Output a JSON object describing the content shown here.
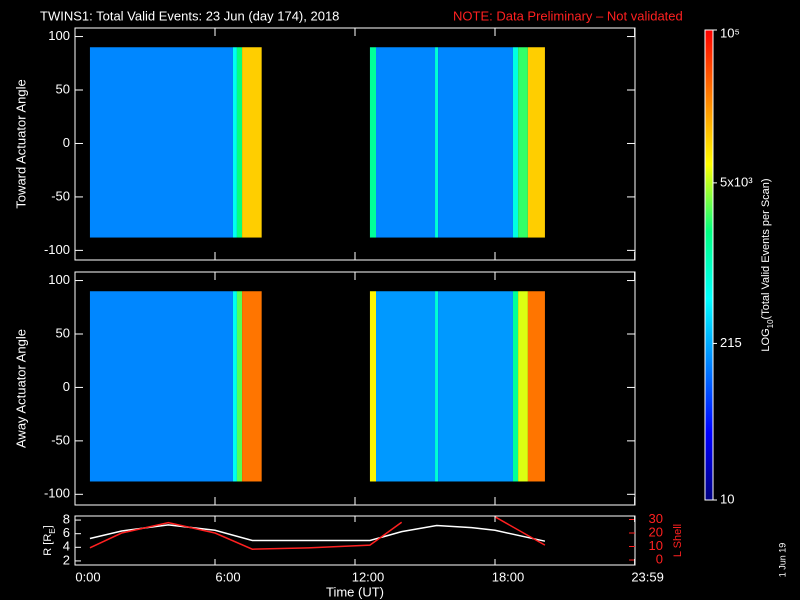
{
  "title": "TWINS1: Total Valid Events: 23 Jun (day 174), 2018",
  "note": "NOTE: Data Preliminary – Not validated",
  "date_stamp": "1 Jun 19",
  "chart_data": [
    {
      "type": "heatmap",
      "ylabel": "Toward Actuator Angle",
      "xlim": [
        0,
        24
      ],
      "ylim": [
        -109,
        108
      ],
      "yticks": [
        -100,
        -50,
        0,
        50,
        100
      ],
      "xbins": [
        0.64,
        6.77,
        6.94,
        7.16,
        8.0,
        12.64,
        12.9,
        15.43,
        15.56,
        18.77,
        18.99,
        19.41,
        20.14
      ],
      "ybins": [
        -88,
        90
      ],
      "values": [
        [
          150
        ],
        [
          600
        ],
        [
          2000
        ],
        [
          12000
        ],
        [
          null
        ],
        [
          1500
        ],
        [
          150
        ],
        [
          800
        ],
        [
          150
        ],
        [
          700
        ],
        [
          2500
        ],
        [
          12000
        ]
      ],
      "colorbar": {
        "scale": "log",
        "lim": [
          10,
          100000
        ],
        "ticks": [
          10,
          215,
          {
            "value": 5000,
            "label": "5x10³"
          },
          {
            "value": 100000,
            "label": "10⁵"
          }
        ],
        "label": [
          "LOG",
          "10",
          "(Total Valid Events per Scan)"
        ],
        "colormap": [
          "#000080",
          "#0000ff",
          "#0080ff",
          "#00ffff",
          "#00ff80",
          "#ffff00",
          "#ff8000",
          "#ff0000"
        ]
      }
    },
    {
      "type": "heatmap",
      "ylabel": "Away Actuator Angle",
      "xlim": [
        0,
        24
      ],
      "ylim": [
        -110,
        108
      ],
      "yticks": [
        -100,
        -50,
        0,
        50,
        100
      ],
      "xbins": [
        0.64,
        6.77,
        6.94,
        7.16,
        8.0,
        12.64,
        12.9,
        15.43,
        15.56,
        18.77,
        18.99,
        19.41,
        20.14
      ],
      "ybins": [
        -88,
        90
      ],
      "values": [
        [
          150
        ],
        [
          600
        ],
        [
          3000
        ],
        [
          30000
        ],
        [
          null
        ],
        [
          8000
        ],
        [
          180
        ],
        [
          800
        ],
        [
          180
        ],
        [
          1500
        ],
        [
          6000
        ],
        [
          30000
        ]
      ]
    },
    {
      "type": "line",
      "xlabel": "Time (UT)",
      "ylabel": [
        "R [R",
        "E",
        "]"
      ],
      "y2label": "L Shell",
      "xlim": [
        0,
        24
      ],
      "xticks": [
        {
          "value": 0,
          "label": "0:00"
        },
        {
          "value": 6,
          "label": "6:00"
        },
        {
          "value": 12,
          "label": "12:00"
        },
        {
          "value": 18,
          "label": "18:00"
        },
        {
          "value": 23.983,
          "label": "23:59"
        }
      ],
      "ylim": [
        1.4,
        8.6
      ],
      "yticks": [
        2,
        4,
        6,
        8
      ],
      "y2lim": [
        -3.7,
        32.6
      ],
      "y2ticks": [
        0,
        10,
        20,
        30
      ],
      "x": [
        0.64,
        2,
        4,
        6,
        7.6,
        10,
        12.64,
        14,
        15.5,
        17,
        18,
        20.14
      ],
      "series": [
        {
          "color": "#ffffff",
          "values": [
            5.3,
            6.4,
            7.3,
            6.5,
            5.0,
            5.0,
            5.0,
            6.3,
            7.2,
            6.9,
            6.5,
            4.9
          ]
        },
        {
          "color": "#ff2020",
          "axis": "y2",
          "values": [
            9,
            20,
            27.7,
            20,
            8,
            9,
            11,
            28,
            null,
            null,
            32,
            11
          ]
        }
      ]
    }
  ]
}
